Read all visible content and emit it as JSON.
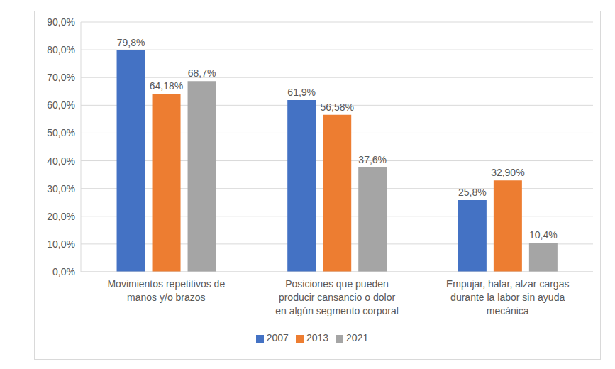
{
  "chart_data": {
    "type": "bar",
    "categories": [
      "Movimientos repetitivos de manos y/o brazos",
      "Posiciones que pueden producir cansancio o dolor en algún segmento corporal",
      "Empujar, halar, alzar cargas durante la labor sin ayuda mecánica"
    ],
    "series": [
      {
        "name": "2007",
        "color": "#4472c4",
        "values": [
          79.8,
          61.9,
          25.8
        ],
        "value_labels": [
          "79,8%",
          "61,9%",
          "25,8%"
        ]
      },
      {
        "name": "2013",
        "color": "#ed7d31",
        "values": [
          64.18,
          56.58,
          32.9
        ],
        "value_labels": [
          "64,18%",
          "56,58%",
          "32,90%"
        ]
      },
      {
        "name": "2021",
        "color": "#a5a5a5",
        "values": [
          68.7,
          37.6,
          10.4
        ],
        "value_labels": [
          "68,7%",
          "37,6%",
          "10,4%"
        ]
      }
    ],
    "ylim": [
      0,
      90
    ],
    "yticks": [
      {
        "value": 0,
        "label": "0,0%"
      },
      {
        "value": 10,
        "label": "10,0%"
      },
      {
        "value": 20,
        "label": "20,0%"
      },
      {
        "value": 30,
        "label": "30,0%"
      },
      {
        "value": 40,
        "label": "40,0%"
      },
      {
        "value": 50,
        "label": "50,0%"
      },
      {
        "value": 60,
        "label": "60,0%"
      },
      {
        "value": 70,
        "label": "70,0%"
      },
      {
        "value": 80,
        "label": "80,0%"
      },
      {
        "value": 90,
        "label": "90,0%"
      }
    ],
    "grid": true,
    "legend": "bottom",
    "data_labels": true
  }
}
